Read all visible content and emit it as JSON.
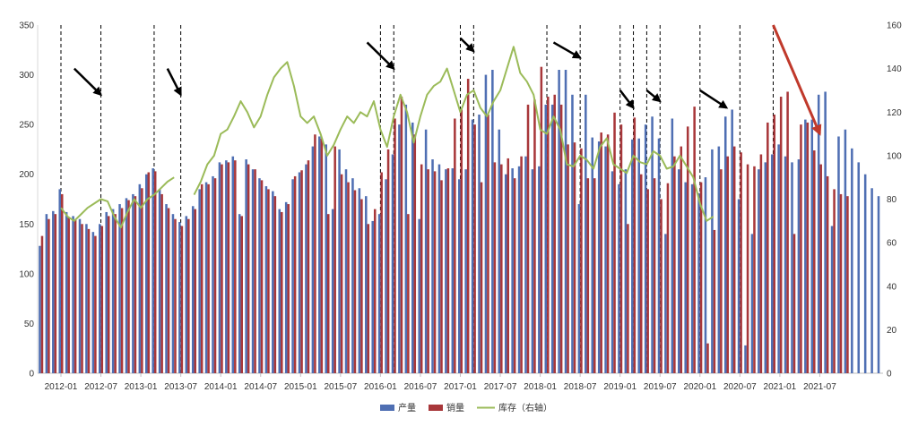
{
  "chart_data": {
    "type": "bar",
    "x_ticks": [
      "2012-01",
      "2012-07",
      "2013-01",
      "2013-07",
      "2014-01",
      "2014-07",
      "2015-01",
      "2015-07",
      "2016-01",
      "2016-07",
      "2017-01",
      "2017-07",
      "2018-01",
      "2018-07",
      "2019-01",
      "2019-07",
      "2020-01",
      "2020-07",
      "2021-01",
      "2021-07"
    ],
    "y_left": {
      "min": 0,
      "max": 350,
      "ticks": [
        0,
        50,
        100,
        150,
        200,
        250,
        300,
        350
      ]
    },
    "y_right": {
      "min": 0,
      "max": 160,
      "ticks": [
        0,
        20,
        40,
        60,
        80,
        100,
        120,
        140,
        160
      ]
    },
    "start_month": "2011-10",
    "series": [
      {
        "name": "产量",
        "type": "bar",
        "axis": "left",
        "color": "#4f6fb3",
        "values": [
          128,
          160,
          163,
          185,
          162,
          158,
          155,
          150,
          142,
          150,
          162,
          165,
          170,
          176,
          180,
          190,
          200,
          206,
          185,
          170,
          160,
          152,
          158,
          168,
          185,
          192,
          198,
          212,
          214,
          218,
          160,
          215,
          205,
          196,
          188,
          183,
          165,
          172,
          195,
          202,
          210,
          228,
          238,
          230,
          165,
          225,
          205,
          196,
          186,
          178,
          153,
          160,
          195,
          220,
          250,
          270,
          252,
          155,
          245,
          215,
          210,
          205,
          206,
          195,
          205,
          255,
          260,
          300,
          305,
          245,
          200,
          206,
          208,
          218,
          205,
          208,
          270,
          270,
          305,
          305,
          280,
          170,
          280,
          237,
          233,
          228,
          203,
          190,
          205,
          235,
          236,
          250,
          258,
          236,
          140,
          256,
          205,
          192,
          190,
          181,
          197,
          225,
          228,
          258,
          265,
          175,
          28,
          140,
          205,
          212,
          220,
          230,
          218,
          212,
          215,
          255,
          255,
          280,
          283,
          148,
          238,
          245,
          226,
          212,
          200,
          186,
          178
        ]
      },
      {
        "name": "销量",
        "type": "bar",
        "axis": "left",
        "color": "#a8373a",
        "values": [
          138,
          155,
          160,
          180,
          157,
          154,
          150,
          145,
          138,
          148,
          158,
          160,
          166,
          174,
          178,
          186,
          202,
          203,
          180,
          166,
          155,
          148,
          155,
          165,
          190,
          190,
          196,
          210,
          212,
          214,
          158,
          210,
          205,
          194,
          185,
          178,
          162,
          170,
          198,
          204,
          214,
          240,
          236,
          160,
          228,
          200,
          192,
          184,
          175,
          150,
          165,
          202,
          225,
          256,
          278,
          160,
          240,
          210,
          205,
          203,
          194,
          206,
          256,
          265,
          296,
          250,
          192,
          260,
          212,
          210,
          216,
          196,
          218,
          270,
          275,
          308,
          278,
          280,
          270,
          230,
          232,
          226,
          196,
          196,
          242,
          240,
          262,
          250,
          150,
          257,
          200,
          185,
          196,
          175,
          191,
          218,
          228,
          248,
          268,
          192,
          30,
          144,
          205,
          218,
          228,
          222,
          210,
          208,
          220,
          252,
          260,
          278,
          283,
          140,
          250,
          252,
          224,
          210,
          198,
          185,
          180,
          178
        ]
      },
      {
        "name": "库存（右轴）",
        "type": "line",
        "axis": "right",
        "color": "#9bbb59",
        "start_index": 3,
        "values": [
          76,
          72,
          70,
          73,
          76,
          78,
          80,
          79,
          72,
          67,
          74,
          80,
          76,
          80,
          82,
          85,
          88,
          90,
          null,
          null,
          82,
          88,
          96,
          100,
          110,
          112,
          118,
          125,
          120,
          113,
          118,
          128,
          136,
          140,
          143,
          132,
          118,
          115,
          118,
          110,
          100,
          105,
          112,
          118,
          115,
          120,
          118,
          125,
          112,
          104,
          118,
          128,
          120,
          106,
          118,
          128,
          132,
          134,
          140,
          130,
          120,
          128,
          130,
          122,
          118,
          125,
          130,
          140,
          150,
          138,
          134,
          128,
          112,
          110,
          118,
          112,
          96,
          95,
          100,
          98,
          94,
          104,
          108,
          96,
          94,
          92,
          100,
          97,
          96,
          102,
          100,
          94,
          95,
          100,
          95,
          90,
          78,
          70,
          72
        ]
      }
    ],
    "dashed_vline_months": [
      "2012-01",
      "2012-07",
      "2013-03",
      "2013-07",
      "2016-01",
      "2016-03",
      "2017-01",
      "2017-03",
      "2018-02",
      "2018-07",
      "2019-01",
      "2019-03",
      "2019-05",
      "2019-07",
      "2020-01",
      "2020-07",
      "2020-12"
    ],
    "annotation_arrows": [
      {
        "color": "#000000",
        "from_month": "2012-03",
        "from_y": 140,
        "to_month": "2012-07",
        "to_y": 128
      },
      {
        "color": "#000000",
        "from_month": "2013-05",
        "from_y": 140,
        "to_month": "2013-07",
        "to_y": 128
      },
      {
        "color": "#000000",
        "from_month": "2015-11",
        "from_y": 152,
        "to_month": "2016-03",
        "to_y": 140
      },
      {
        "color": "#000000",
        "from_month": "2017-01",
        "from_y": 154,
        "to_month": "2017-03",
        "to_y": 148
      },
      {
        "color": "#000000",
        "from_month": "2018-03",
        "from_y": 152,
        "to_month": "2018-07",
        "to_y": 145
      },
      {
        "color": "#000000",
        "from_month": "2019-01",
        "from_y": 130,
        "to_month": "2019-03",
        "to_y": 122
      },
      {
        "color": "#000000",
        "from_month": "2019-05",
        "from_y": 130,
        "to_month": "2019-07",
        "to_y": 125
      },
      {
        "color": "#000000",
        "from_month": "2020-01",
        "from_y": 130,
        "to_month": "2020-05",
        "to_y": 122
      },
      {
        "color": "#c0392b",
        "from_month": "2020-12",
        "from_y": 160,
        "to_month": "2021-07",
        "to_y": 110
      }
    ],
    "legend_position": "bottom",
    "grid": false
  }
}
